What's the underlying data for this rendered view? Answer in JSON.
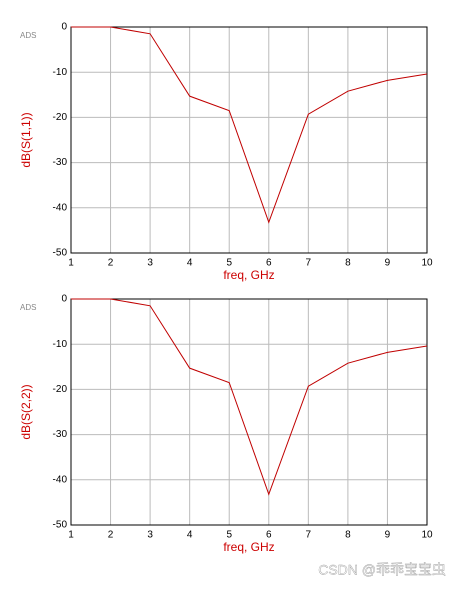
{
  "chart_data": [
    {
      "type": "line",
      "annotation": "ADS",
      "xlabel": "freq, GHz",
      "ylabel": "dB(S(1,1))",
      "x": [
        1,
        2,
        3,
        4,
        5,
        6,
        7,
        8,
        9,
        10
      ],
      "values": [
        0,
        0,
        -1.5,
        -15.3,
        -18.5,
        -43.2,
        -19.3,
        -14.2,
        -11.8,
        -10.4
      ],
      "color": "#c00000",
      "xlim": [
        1,
        10
      ],
      "xticks": [
        1,
        2,
        3,
        4,
        5,
        6,
        7,
        8,
        9,
        10
      ],
      "ylim": [
        -50,
        0
      ],
      "yticks": [
        -50,
        -40,
        -30,
        -20,
        -10,
        0
      ],
      "grid": true
    },
    {
      "type": "line",
      "annotation": "ADS",
      "xlabel": "freq, GHz",
      "ylabel": "dB(S(2,2))",
      "x": [
        1,
        2,
        3,
        4,
        5,
        6,
        7,
        8,
        9,
        10
      ],
      "values": [
        0,
        0,
        -1.5,
        -15.3,
        -18.5,
        -43.2,
        -19.3,
        -14.2,
        -11.8,
        -10.4
      ],
      "color": "#c00000",
      "xlim": [
        1,
        10
      ],
      "xticks": [
        1,
        2,
        3,
        4,
        5,
        6,
        7,
        8,
        9,
        10
      ],
      "ylim": [
        -50,
        0
      ],
      "yticks": [
        -50,
        -40,
        -30,
        -20,
        -10,
        0
      ],
      "grid": true
    }
  ],
  "watermark": "CSDN @乖乖宝宝虫"
}
